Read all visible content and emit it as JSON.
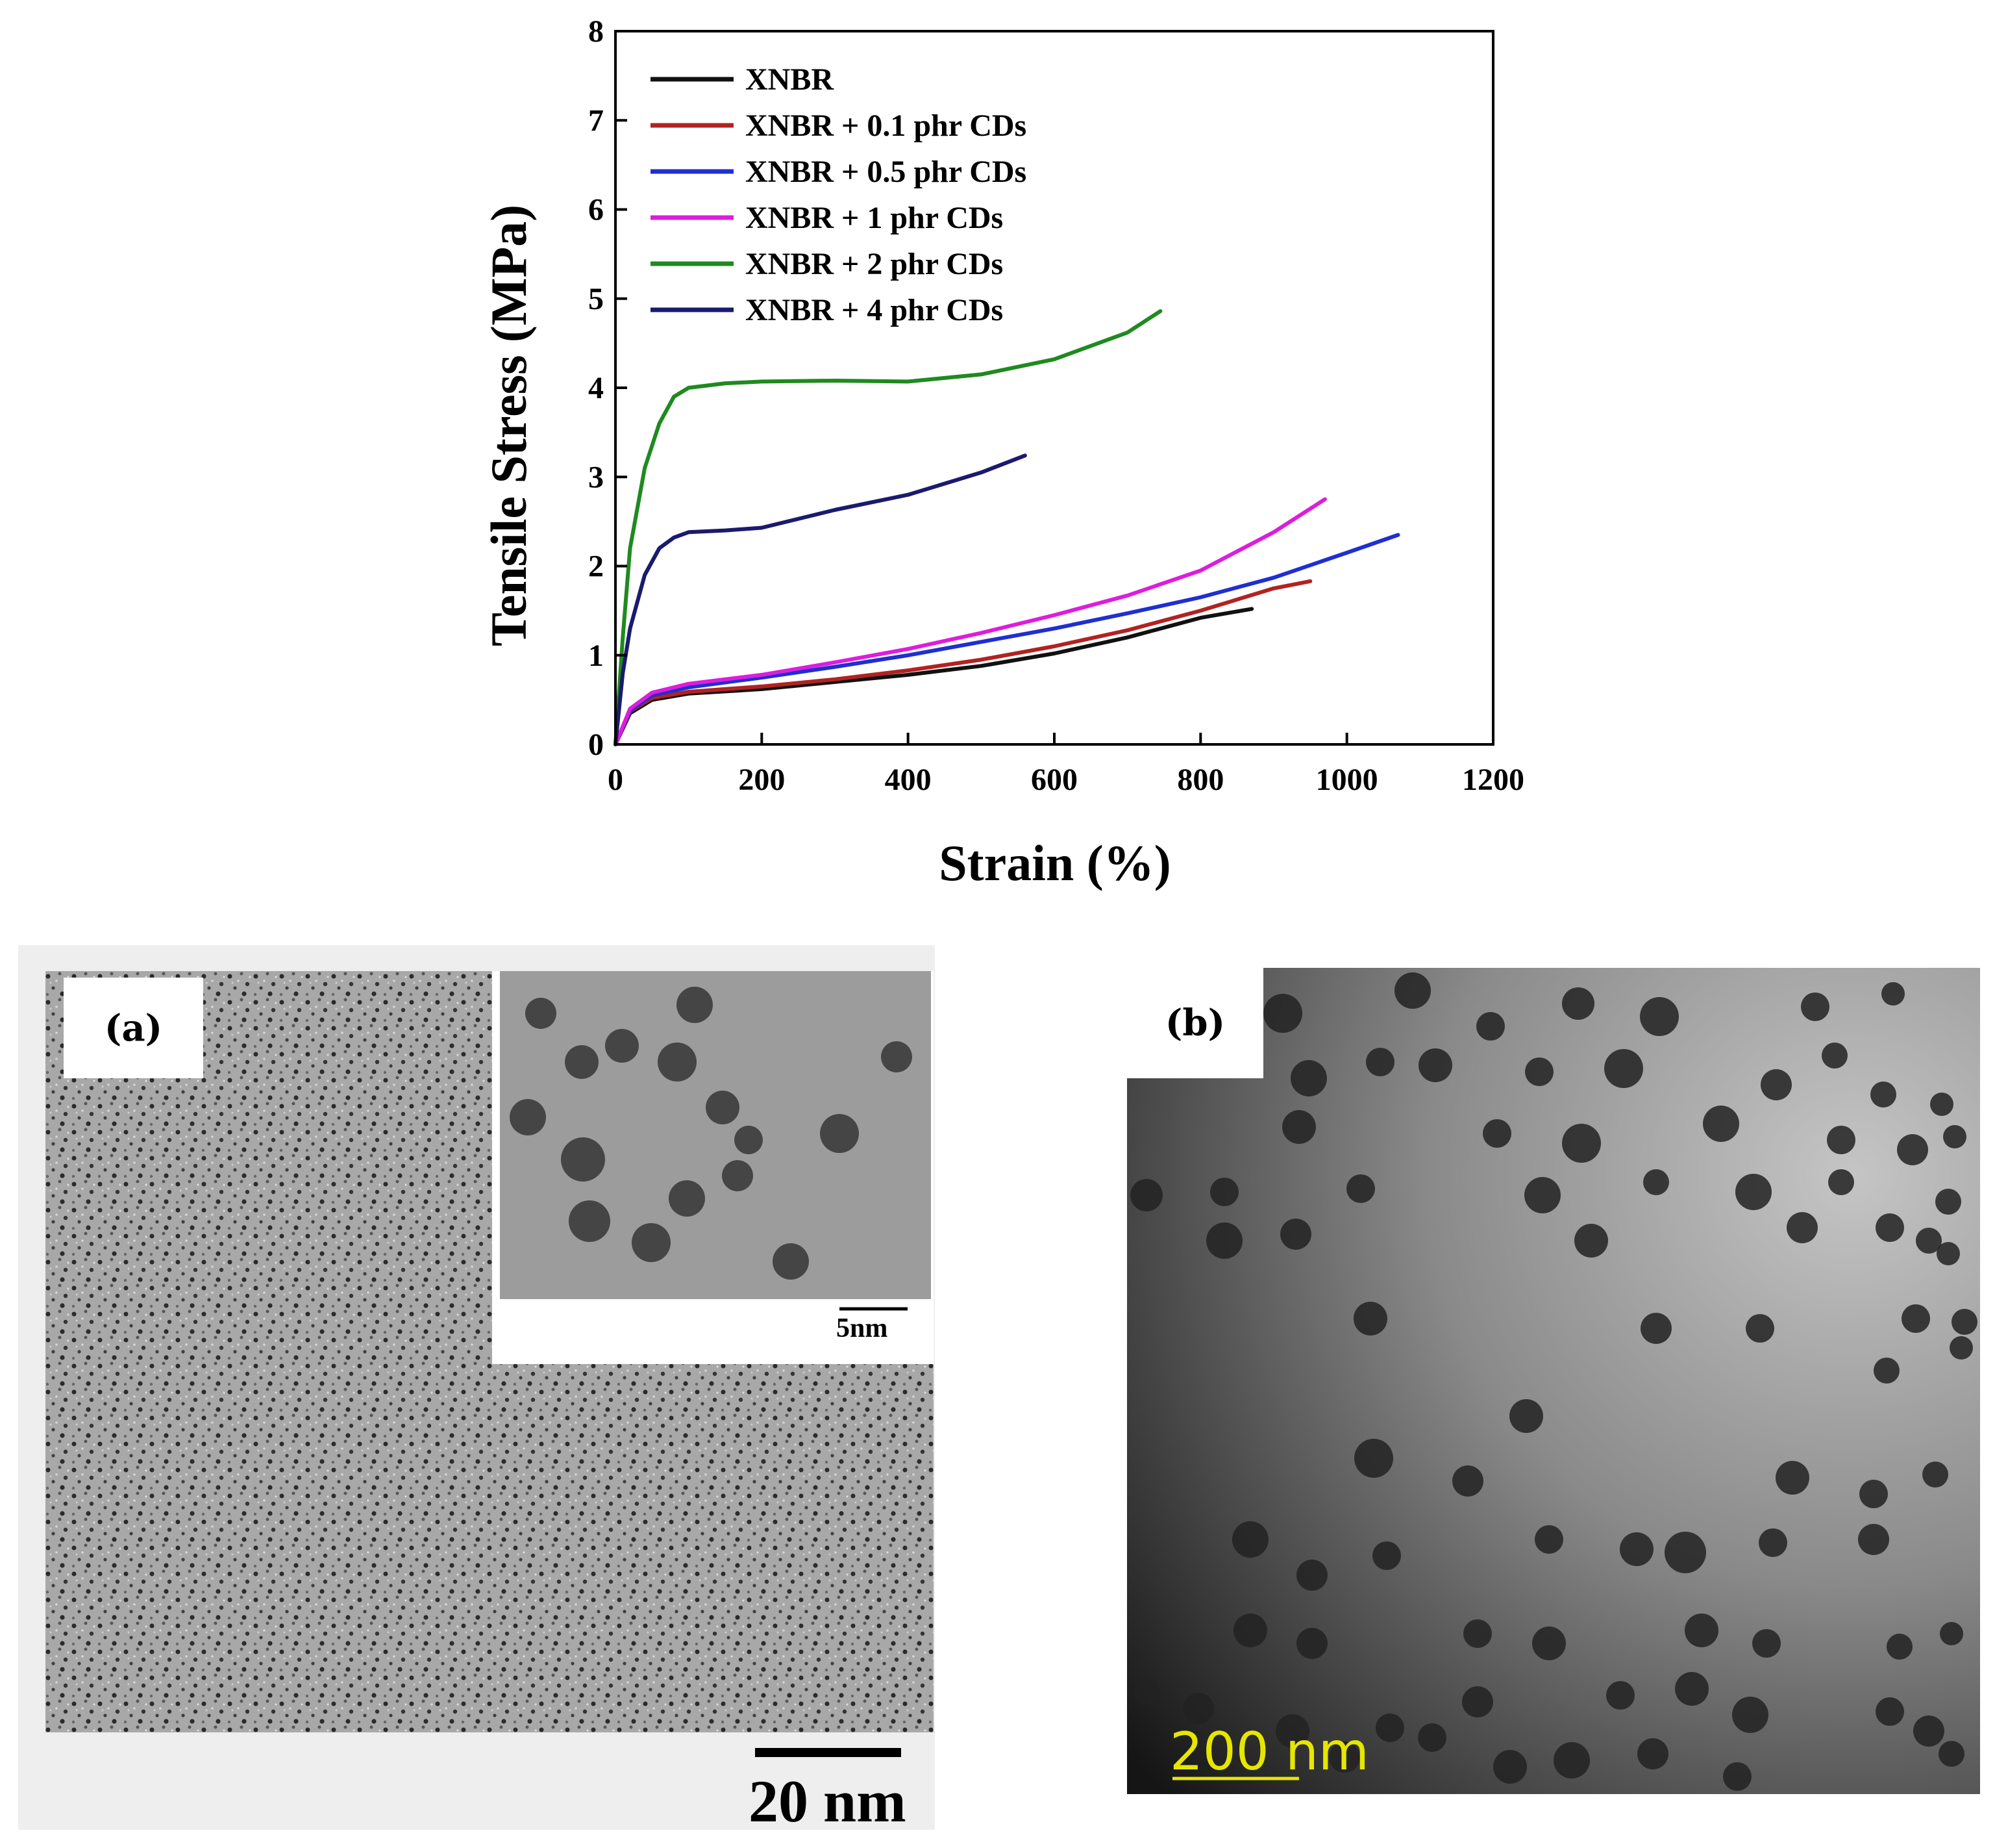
{
  "chart_data": {
    "type": "line",
    "xlabel": "Strain (%)",
    "ylabel": "Tensile Stress (MPa)",
    "xlim": [
      0,
      1200
    ],
    "ylim": [
      0,
      8
    ],
    "xticks": [
      "0",
      "200",
      "400",
      "600",
      "800",
      "1000",
      "1200"
    ],
    "yticks": [
      "0",
      "1",
      "2",
      "3",
      "4",
      "5",
      "6",
      "7",
      "8"
    ],
    "legend_position": "top-left",
    "series": [
      {
        "name": "XNBR",
        "color": "#111111",
        "x": [
          0,
          20,
          50,
          100,
          200,
          300,
          400,
          500,
          600,
          700,
          800,
          870
        ],
        "y": [
          0,
          0.35,
          0.5,
          0.57,
          0.62,
          0.7,
          0.78,
          0.88,
          1.02,
          1.2,
          1.42,
          1.52
        ]
      },
      {
        "name": "XNBR + 0.1 phr CDs",
        "color": "#b22222",
        "x": [
          0,
          20,
          50,
          100,
          200,
          300,
          400,
          500,
          600,
          700,
          800,
          900,
          950
        ],
        "y": [
          0,
          0.37,
          0.52,
          0.59,
          0.65,
          0.73,
          0.83,
          0.95,
          1.1,
          1.28,
          1.5,
          1.75,
          1.83
        ]
      },
      {
        "name": "XNBR + 0.5 phr CDs",
        "color": "#1f2fd1",
        "x": [
          0,
          20,
          50,
          100,
          200,
          300,
          400,
          500,
          600,
          700,
          800,
          900,
          1000,
          1070
        ],
        "y": [
          0,
          0.38,
          0.55,
          0.64,
          0.75,
          0.87,
          1.0,
          1.15,
          1.3,
          1.47,
          1.65,
          1.87,
          2.15,
          2.35
        ]
      },
      {
        "name": "XNBR + 1 phr CDs",
        "color": "#dd1ddd",
        "x": [
          0,
          20,
          50,
          100,
          200,
          300,
          400,
          500,
          600,
          700,
          800,
          900,
          970
        ],
        "y": [
          0,
          0.4,
          0.58,
          0.68,
          0.78,
          0.92,
          1.07,
          1.25,
          1.45,
          1.67,
          1.95,
          2.38,
          2.75
        ]
      },
      {
        "name": "XNBR + 2 phr CDs",
        "color": "#1f8a1f",
        "x": [
          0,
          10,
          20,
          40,
          60,
          80,
          100,
          150,
          200,
          300,
          400,
          500,
          600,
          700,
          745
        ],
        "y": [
          0,
          1.2,
          2.2,
          3.1,
          3.6,
          3.9,
          4.0,
          4.05,
          4.07,
          4.08,
          4.07,
          4.15,
          4.32,
          4.62,
          4.86
        ]
      },
      {
        "name": "XNBR + 4 phr CDs",
        "color": "#1a1a6e",
        "x": [
          0,
          10,
          20,
          40,
          60,
          80,
          100,
          150,
          200,
          300,
          400,
          500,
          560
        ],
        "y": [
          0,
          0.8,
          1.3,
          1.9,
          2.2,
          2.32,
          2.38,
          2.4,
          2.43,
          2.63,
          2.8,
          3.05,
          3.24
        ]
      }
    ]
  },
  "panel_a": {
    "tag": "(a)",
    "inset_scale_label": "5nm",
    "scale_label": "20 nm"
  },
  "panel_b": {
    "tag": "(b)",
    "scale_label": "200 nm",
    "scale_color": "#e6e600"
  }
}
